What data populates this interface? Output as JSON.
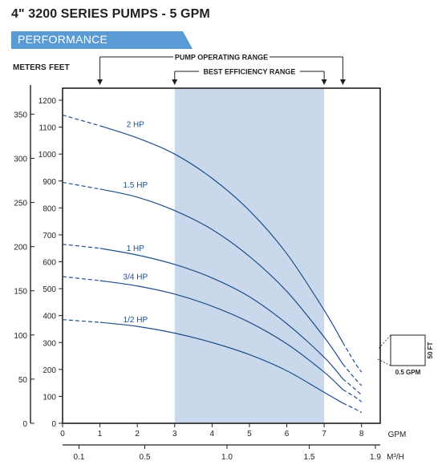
{
  "header": {
    "title": "4\" 3200 SERIES PUMPS - 5 GPM",
    "section_label": "PERFORMANCE"
  },
  "colors": {
    "banner": "#5b9bd5",
    "curve": "#1f4e8c",
    "efficiency_band": "#c9d8ea",
    "axis": "#231f20"
  },
  "chart_data": {
    "type": "line",
    "xlabel": "GPM",
    "x2label": "M³/H",
    "y_left_outer_label": "METERS",
    "y_left_inner_label": "FEET",
    "xlim": [
      0,
      8.5
    ],
    "ylim_feet": [
      0,
      1250
    ],
    "x_ticks": [
      0,
      1,
      2,
      3,
      4,
      5,
      6,
      7,
      8
    ],
    "x2_ticks": [
      "0.1",
      "0.5",
      "1.0",
      "1.5",
      "1.9"
    ],
    "x2_tick_gpm": [
      0.44,
      2.2,
      4.4,
      6.6,
      8.37
    ],
    "y_feet_ticks": [
      0,
      100,
      200,
      300,
      400,
      500,
      600,
      700,
      800,
      900,
      1000,
      1100,
      1200
    ],
    "y_meters_ticks": [
      0,
      50,
      100,
      150,
      200,
      250,
      300,
      350
    ],
    "pump_operating_range": {
      "label": "PUMP OPERATING RANGE",
      "x": [
        1,
        7.5
      ]
    },
    "best_efficiency_range": {
      "label": "BEST EFFICIENCY RANGE",
      "x": [
        3,
        7
      ]
    },
    "series": [
      {
        "name": "2 HP",
        "dashed_until": 1,
        "x": [
          0,
          1,
          2,
          3,
          4,
          5,
          6,
          7,
          7.5,
          7.8,
          8.0
        ],
        "y": [
          1145,
          1105,
          1060,
          1000,
          910,
          790,
          630,
          420,
          300,
          230,
          190
        ]
      },
      {
        "name": "1.5 HP",
        "dashed_until": 1,
        "x": [
          0,
          1,
          2,
          3,
          4,
          5,
          6,
          7,
          7.5,
          7.8,
          8.0
        ],
        "y": [
          895,
          870,
          840,
          790,
          720,
          620,
          490,
          320,
          220,
          170,
          140
        ]
      },
      {
        "name": "1 HP",
        "dashed_until": 1,
        "x": [
          0,
          1,
          2,
          3,
          4,
          5,
          6,
          7,
          7.5,
          7.8,
          8.0
        ],
        "y": [
          665,
          650,
          625,
          590,
          540,
          470,
          370,
          245,
          165,
          130,
          105
        ]
      },
      {
        "name": "3/4 HP",
        "dashed_until": 1,
        "x": [
          0,
          1,
          2,
          3,
          4,
          5,
          6,
          7,
          7.5,
          7.8,
          8.0
        ],
        "y": [
          545,
          530,
          510,
          480,
          435,
          375,
          295,
          190,
          125,
          100,
          80
        ]
      },
      {
        "name": "1/2 HP",
        "dashed_until": 1,
        "x": [
          0,
          1,
          2,
          3,
          4,
          5,
          6,
          7,
          7.5,
          7.8,
          8.0
        ],
        "y": [
          385,
          375,
          360,
          335,
          300,
          255,
          195,
          115,
          75,
          55,
          40
        ]
      }
    ],
    "inset": {
      "label_vertical": "50 FT",
      "label_horizontal": "0.5 GPM"
    }
  }
}
